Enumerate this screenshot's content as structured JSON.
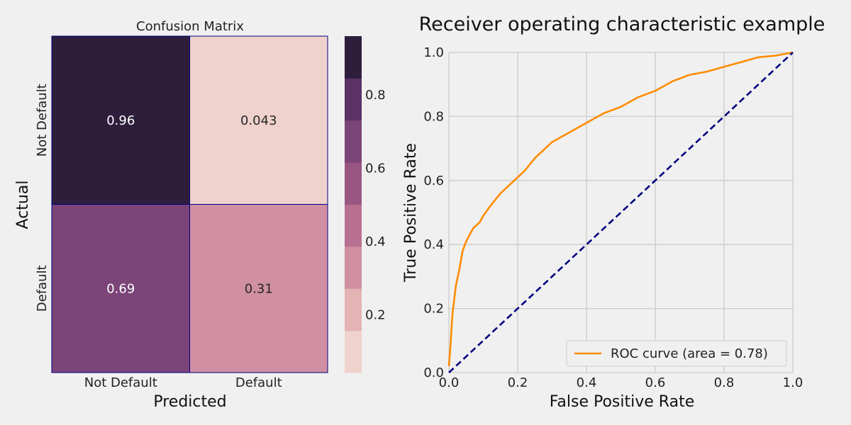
{
  "chart_data": [
    {
      "type": "heatmap",
      "title": "Confusion Matrix",
      "xlabel": "Predicted",
      "ylabel": "Actual",
      "x_categories": [
        "Not Default",
        "Default"
      ],
      "y_categories": [
        "Not Default",
        "Default"
      ],
      "values": [
        [
          0.96,
          0.043
        ],
        [
          0.69,
          0.31
        ]
      ],
      "value_labels": [
        [
          "0.96",
          "0.043"
        ],
        [
          "0.69",
          "0.31"
        ]
      ],
      "colorbar": {
        "range": [
          0.043,
          0.96
        ],
        "ticks": [
          0.2,
          0.4,
          0.6,
          0.8
        ],
        "tick_labels": [
          "0.2",
          "0.4",
          "0.6",
          "0.8"
        ],
        "colors": [
          "#efd2cc",
          "#e4b3b4",
          "#d08fa2",
          "#b7708f",
          "#9a5683",
          "#7b4578",
          "#5c3266",
          "#2e1e3c"
        ]
      }
    },
    {
      "type": "line",
      "title": "Receiver operating characteristic example",
      "xlabel": "False Positive Rate",
      "ylabel": "True Positive Rate",
      "xlim": [
        0.0,
        1.0
      ],
      "ylim": [
        0.0,
        1.0
      ],
      "x_ticks": [
        0.0,
        0.2,
        0.4,
        0.6,
        0.8,
        1.0
      ],
      "x_tick_labels": [
        "0.0",
        "0.2",
        "0.4",
        "0.6",
        "0.8",
        "1.0"
      ],
      "y_ticks": [
        0.0,
        0.2,
        0.4,
        0.6,
        0.8,
        1.0
      ],
      "y_tick_labels": [
        "0.0",
        "0.2",
        "0.4",
        "0.6",
        "0.8",
        "1.0"
      ],
      "grid": true,
      "legend_position": "bottom-right",
      "series": [
        {
          "name": "ROC curve (area = 0.78)",
          "color": "#ff8c00",
          "x": [
            0.0,
            0.005,
            0.01,
            0.02,
            0.03,
            0.04,
            0.05,
            0.07,
            0.09,
            0.1,
            0.12,
            0.15,
            0.18,
            0.2,
            0.22,
            0.25,
            0.28,
            0.3,
            0.35,
            0.4,
            0.45,
            0.5,
            0.55,
            0.6,
            0.65,
            0.7,
            0.75,
            0.8,
            0.85,
            0.9,
            0.95,
            1.0
          ],
          "y": [
            0.02,
            0.09,
            0.18,
            0.27,
            0.32,
            0.38,
            0.41,
            0.45,
            0.47,
            0.49,
            0.52,
            0.56,
            0.59,
            0.61,
            0.63,
            0.67,
            0.7,
            0.72,
            0.75,
            0.78,
            0.81,
            0.83,
            0.86,
            0.88,
            0.91,
            0.93,
            0.94,
            0.955,
            0.97,
            0.985,
            0.99,
            1.0
          ]
        },
        {
          "name": "",
          "color": "#000080",
          "dashed": true,
          "x": [
            0.0,
            1.0
          ],
          "y": [
            0.0,
            1.0
          ]
        }
      ]
    }
  ]
}
